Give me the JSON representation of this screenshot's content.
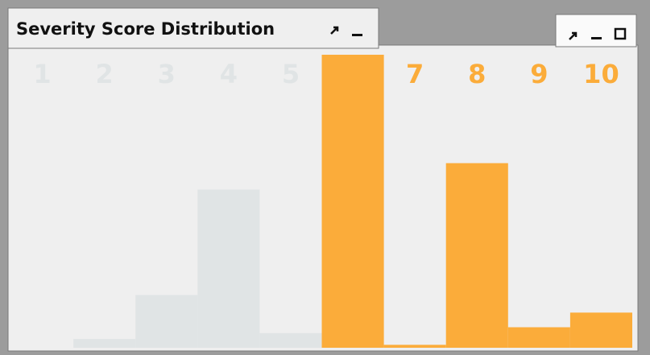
{
  "chart_data": {
    "type": "bar",
    "title": "Severity Score Distribution",
    "categories": [
      "1",
      "2",
      "3",
      "4",
      "5",
      "6",
      "7",
      "8",
      "9",
      "10"
    ],
    "values": [
      0,
      3,
      18,
      54,
      5,
      100,
      1,
      63,
      7,
      12
    ],
    "colors": [
      "#e0e4e5",
      "#e0e4e5",
      "#e0e4e5",
      "#e0e4e5",
      "#e0e4e5",
      "#fbac3a",
      "#fbac3a",
      "#fbac3a",
      "#fbac3a",
      "#fbac3a"
    ],
    "ylim": [
      0,
      100
    ]
  }
}
